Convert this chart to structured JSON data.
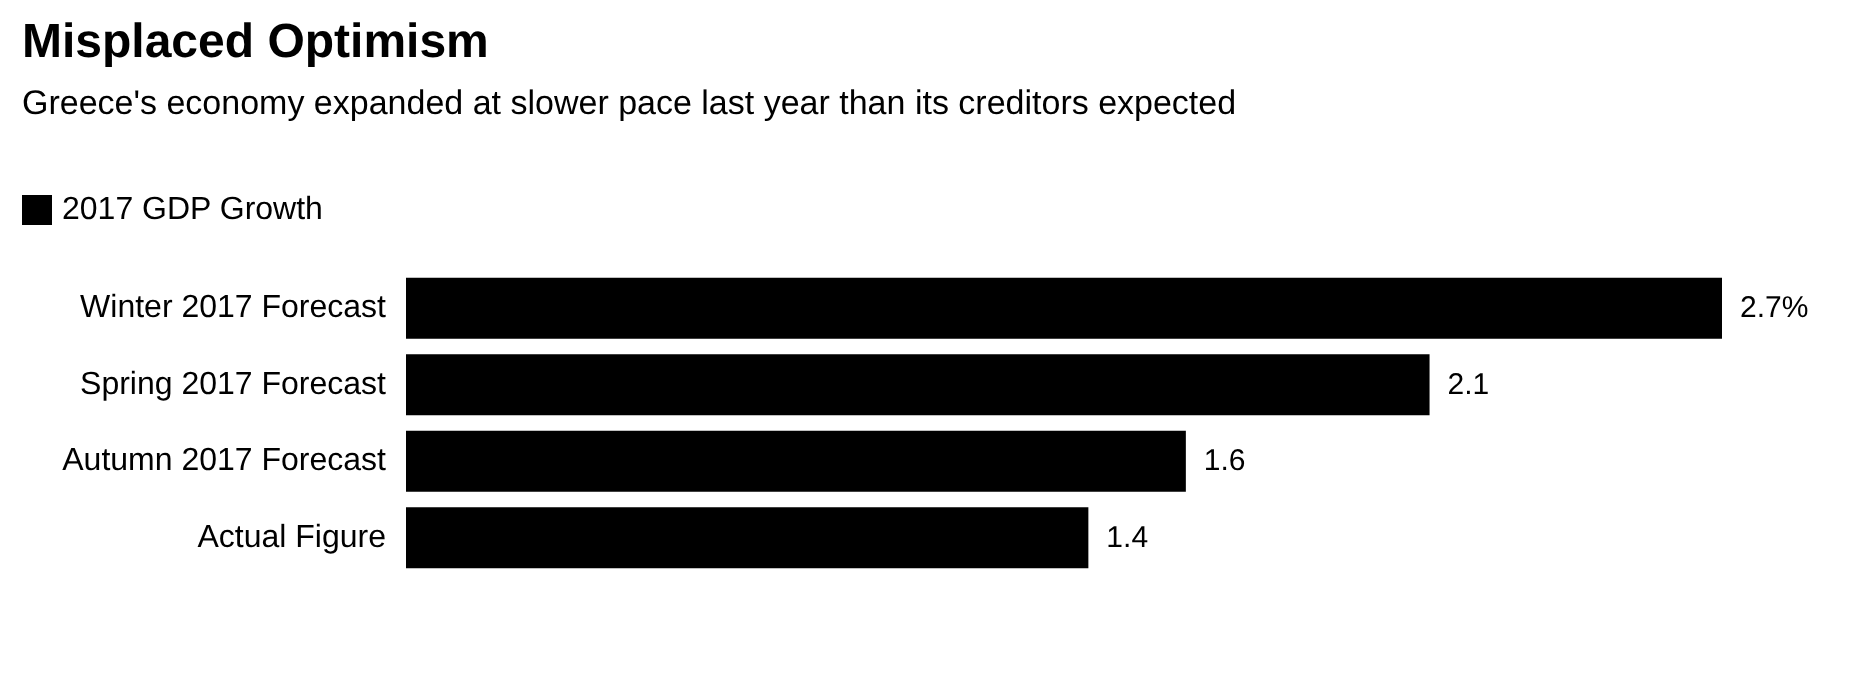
{
  "chart_data": {
    "type": "bar",
    "title": "Misplaced Optimism",
    "subtitle": "Greece's economy expanded at slower pace last year than its creditors expected",
    "orientation": "horizontal",
    "categories": [
      "Winter 2017 Forecast",
      "Spring 2017 Forecast",
      "Autumn 2017 Forecast",
      "Actual Figure"
    ],
    "series": [
      {
        "name": "2017 GDP Growth",
        "color": "#000000",
        "values": [
          2.7,
          2.1,
          1.6,
          1.4
        ],
        "value_labels": [
          "2.7%",
          "2.1",
          "1.6",
          "1.4"
        ]
      }
    ],
    "legend": "top left"
  }
}
